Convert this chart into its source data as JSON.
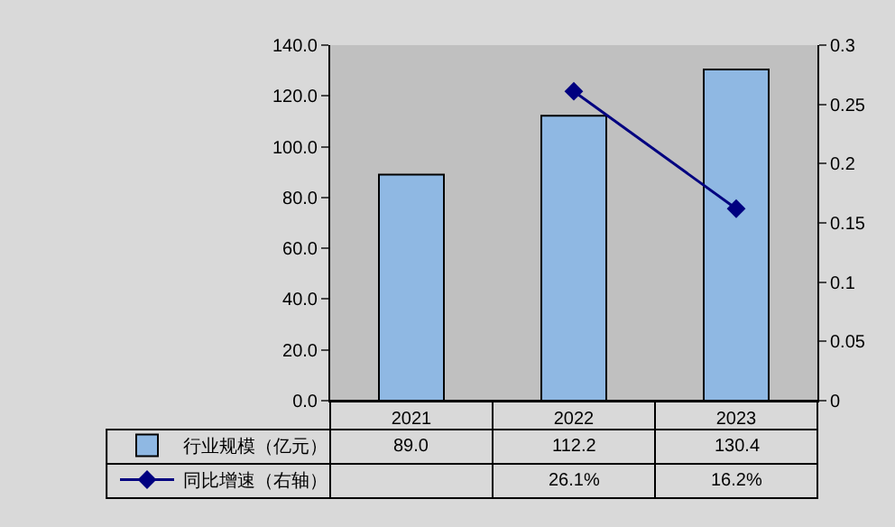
{
  "chart_data": {
    "type": "bar",
    "categories": [
      "2021",
      "2022",
      "2023"
    ],
    "series": [
      {
        "name": "行业规模（亿元）",
        "type": "bar",
        "color": "#8fb8e3",
        "values": [
          89.0,
          112.2,
          130.4
        ],
        "value_labels": [
          "89.0",
          "112.2",
          "130.4"
        ]
      },
      {
        "name": "同比增速（右轴）",
        "type": "line",
        "axis": "y2",
        "color": "#000080",
        "marker": "diamond",
        "values": [
          null,
          0.261,
          0.162
        ],
        "value_labels": [
          null,
          "26.1%",
          "16.2%"
        ]
      }
    ],
    "ylim": [
      0,
      140
    ],
    "yticks": [
      {
        "value": 0,
        "label": "0.0"
      },
      {
        "value": 20,
        "label": "20.0"
      },
      {
        "value": 40,
        "label": "40.0"
      },
      {
        "value": 60,
        "label": "60.0"
      },
      {
        "value": 80,
        "label": "80.0"
      },
      {
        "value": 100,
        "label": "100.0"
      },
      {
        "value": 120,
        "label": "120.0"
      },
      {
        "value": 140,
        "label": "140.0"
      }
    ],
    "y2lim": [
      0,
      0.3
    ],
    "y2ticks": [
      0,
      0.05,
      0.1,
      0.15,
      0.2,
      0.25,
      0.3
    ],
    "grid": false,
    "legend": "bottom"
  }
}
